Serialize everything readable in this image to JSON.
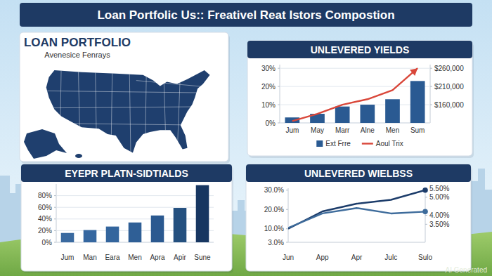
{
  "header": {
    "title": "Loan Portfolic Us:: Freativel Reat Istors Compostion"
  },
  "map_panel": {
    "title": "LOAN PORTFOLIO",
    "subtitle": "Avenesice Fenrays"
  },
  "chart_data": [
    {
      "type": "bar",
      "title": "UNLEVERED YIELDS",
      "categories": [
        "Jum",
        "May",
        "Marr",
        "Alne",
        "Men",
        "Sum"
      ],
      "series": [
        {
          "name": "Ext Frre",
          "type": "bar",
          "color": "#2a5a92",
          "values": [
            3,
            5,
            9,
            10,
            13,
            23
          ]
        },
        {
          "name": "Aoul Trix",
          "type": "line",
          "color": "#d9473a",
          "marker": "arrow",
          "values": [
            1,
            5,
            10,
            13,
            18,
            30
          ]
        }
      ],
      "ylim": [
        0,
        32
      ],
      "yticks": [
        {
          "value": 0,
          "label": "0%"
        },
        {
          "value": 10,
          "label": "10%"
        },
        {
          "value": 20,
          "label": "20%"
        },
        {
          "value": 30,
          "label": "30%"
        }
      ],
      "y2lim": [
        110000,
        270000
      ],
      "y2ticks": [
        {
          "value": 160000,
          "label": "$160,000"
        },
        {
          "value": 210000,
          "label": "$210,000"
        },
        {
          "value": 260000,
          "label": "$260,000"
        }
      ],
      "grid": true,
      "legend": "bottom"
    },
    {
      "type": "bar",
      "title": "EYEPR PLATN-SIDTIALDS",
      "categories": [
        "Jum",
        "Man",
        "Eara",
        "Men",
        "Apra",
        "Apir",
        "Sune"
      ],
      "values": [
        16,
        21,
        27,
        34,
        46,
        59,
        98
      ],
      "colors": [
        "#3a6aa0",
        "#3567a0",
        "#33659d",
        "#2f5f96",
        "#2b5990",
        "#24507f",
        "#173661"
      ],
      "ylim": [
        0,
        100
      ],
      "yticks": [
        {
          "value": 0,
          "label": "0%"
        },
        {
          "value": 20,
          "label": "20%"
        },
        {
          "value": 40,
          "label": "40%"
        },
        {
          "value": 60,
          "label": "60%"
        },
        {
          "value": 80,
          "label": "80%"
        }
      ],
      "grid": true
    },
    {
      "type": "line",
      "title": "UNLEVERED WIELBSS",
      "categories": [
        "Jun",
        "App",
        "Apr",
        "Julc",
        "Sulo"
      ],
      "series": [
        {
          "color": "#1c3c6a",
          "marker": "end",
          "values": [
            10,
            19,
            23,
            25,
            30
          ]
        },
        {
          "color": "#3d6b9b",
          "marker": "end",
          "axis": "y2",
          "values": [
            3.3,
            4.1,
            4.4,
            4.1,
            4.2
          ]
        }
      ],
      "ylim": [
        3,
        31
      ],
      "yticks": [
        {
          "value": 3,
          "label": "3.0%"
        },
        {
          "value": 10,
          "label": "10.0%"
        },
        {
          "value": 20,
          "label": "20.0%"
        },
        {
          "value": 30,
          "label": "30.0%"
        }
      ],
      "y2lim": [
        2.5,
        5.5
      ],
      "y2ticks": [
        {
          "value": 3.5,
          "label": "3.50%"
        },
        {
          "value": 4,
          "label": "4.00%"
        },
        {
          "value": 5,
          "label": "5.00%"
        },
        {
          "value": 5.5,
          "label": "5.50%"
        }
      ],
      "grid": false
    }
  ],
  "watermark": "AI Generated"
}
